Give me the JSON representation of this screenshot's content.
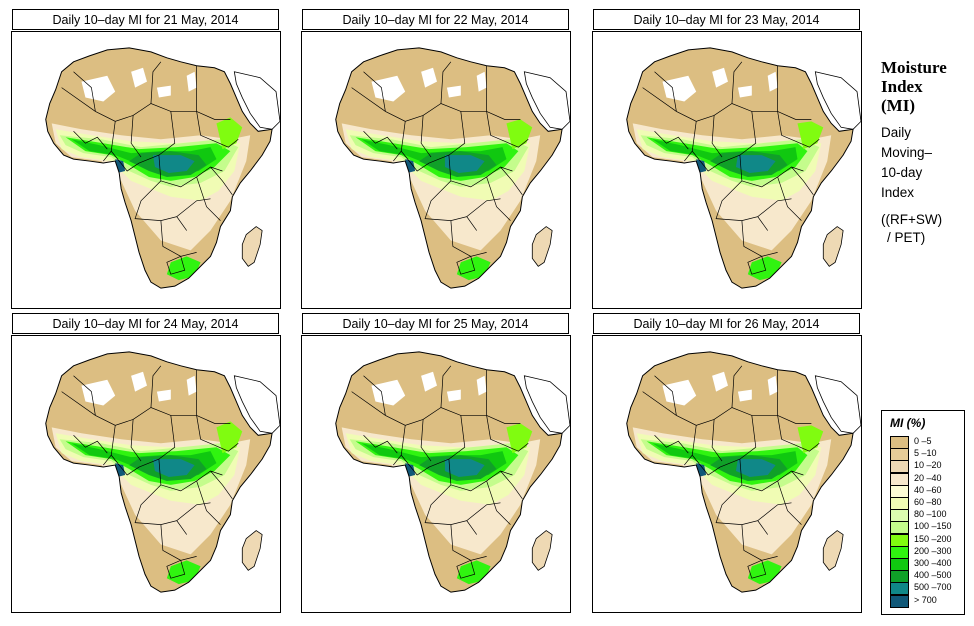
{
  "panels": [
    {
      "title": "Daily 10–day MI for  21 May, 2014",
      "date": "21 May, 2014"
    },
    {
      "title": "Daily 10–day MI for  22 May, 2014",
      "date": "22 May, 2014"
    },
    {
      "title": "Daily 10–day MI for  23 May, 2014",
      "date": "23 May, 2014"
    },
    {
      "title": "Daily 10–day MI for  24 May, 2014",
      "date": "24 May, 2014"
    },
    {
      "title": "Daily 10–day MI for  25 May, 2014",
      "date": "25 May, 2014"
    },
    {
      "title": "Daily 10–day MI for  26 May, 2014",
      "date": "26 May, 2014"
    }
  ],
  "sidebar": {
    "heading_line1": "Moisture",
    "heading_line2": "Index",
    "heading_line3": "(MI)",
    "desc_line1": "Daily",
    "desc_line2": "Moving–",
    "desc_line3": "10-day",
    "desc_line4": "Index",
    "formula_line1": "((RF+SW)",
    "formula_line2": "/ PET)"
  },
  "chart_data": {
    "type": "heatmap",
    "title": "Moisture Index (MI) - Daily Moving 10-day Index ((RF+SW)/PET)",
    "region": "Africa",
    "panels": [
      "21 May, 2014",
      "22 May, 2014",
      "23 May, 2014",
      "24 May, 2014",
      "25 May, 2014",
      "26 May, 2014"
    ],
    "legend": {
      "title": "MI (%)",
      "placement": "bottom-right",
      "classes": [
        {
          "label": "0 –5",
          "color": "#dcbe82"
        },
        {
          "label": "5 –10",
          "color": "#e6cc98"
        },
        {
          "label": "10 –20",
          "color": "#eed9b4"
        },
        {
          "label": "20 –40",
          "color": "#f7e8cc"
        },
        {
          "label": "40 –60",
          "color": "#fcfcd4"
        },
        {
          "label": "60 –80",
          "color": "#f0fcb4"
        },
        {
          "label": "80 –100",
          "color": "#dcfcb0"
        },
        {
          "label": "100 –150",
          "color": "#c4fc8c"
        },
        {
          "label": "150 –200",
          "color": "#80fc10"
        },
        {
          "label": "200 –300",
          "color": "#30f410"
        },
        {
          "label": "300 –400",
          "color": "#10c810"
        },
        {
          "label": "400 –500",
          "color": "#10a028"
        },
        {
          "label": "500 –700",
          "color": "#108888"
        },
        {
          "label": "> 700",
          "color": "#105878"
        }
      ]
    }
  }
}
